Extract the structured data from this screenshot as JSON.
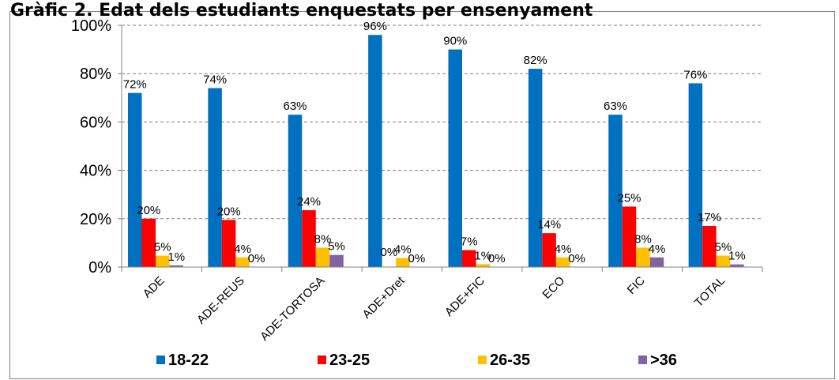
{
  "chart_data": {
    "type": "bar",
    "title": "Gràfic 2. Edat dels estudiants enquestats per ensenyament",
    "categories": [
      "ADE",
      "ADE-REUS",
      "ADE-TORTOSA",
      "ADE+Dret",
      "ADE+FIC",
      "ECO",
      "FIC",
      "TOTAL"
    ],
    "series": [
      {
        "name": "18-22",
        "color": "#0070c0",
        "values": [
          72,
          74,
          63,
          96,
          90,
          82,
          63,
          76
        ],
        "labels": [
          "72%",
          "74%",
          "63%",
          "96%",
          "90%",
          "82%",
          "63%",
          "76%"
        ]
      },
      {
        "name": "23-25",
        "color": "#ff0000",
        "values": [
          20,
          19.5,
          23.5,
          null,
          7,
          14,
          25,
          17
        ],
        "labels": [
          "20%",
          "20%",
          "24%",
          null,
          "7%",
          "14%",
          "25%",
          "17%"
        ]
      },
      {
        "name": "26-35",
        "color": "#ffc000",
        "values": [
          4.7,
          4,
          8,
          3.7,
          1.2,
          4,
          8,
          4.7
        ],
        "labels": [
          "5%",
          "4%",
          "8%",
          "4%",
          "1%",
          "4%",
          "8%",
          "5%"
        ]
      },
      {
        "name": ">36",
        "color": "#8064a2",
        "values": [
          0.7,
          0,
          5,
          0,
          0,
          0,
          4,
          1.1
        ],
        "labels": [
          "1%",
          "0%",
          "5%",
          "0%",
          "0%",
          "0%",
          "4%",
          "1%"
        ]
      }
    ],
    "extra_labels": [
      {
        "category": "ADE+Dret",
        "series": "23-25",
        "label": "0%"
      }
    ],
    "ylim": [
      0,
      100
    ],
    "yticks": [
      0,
      20,
      40,
      60,
      80,
      100
    ],
    "ytick_labels": [
      "0%",
      "20%",
      "40%",
      "60%",
      "80%",
      "100%"
    ],
    "grid": true,
    "legend_position": "bottom"
  }
}
